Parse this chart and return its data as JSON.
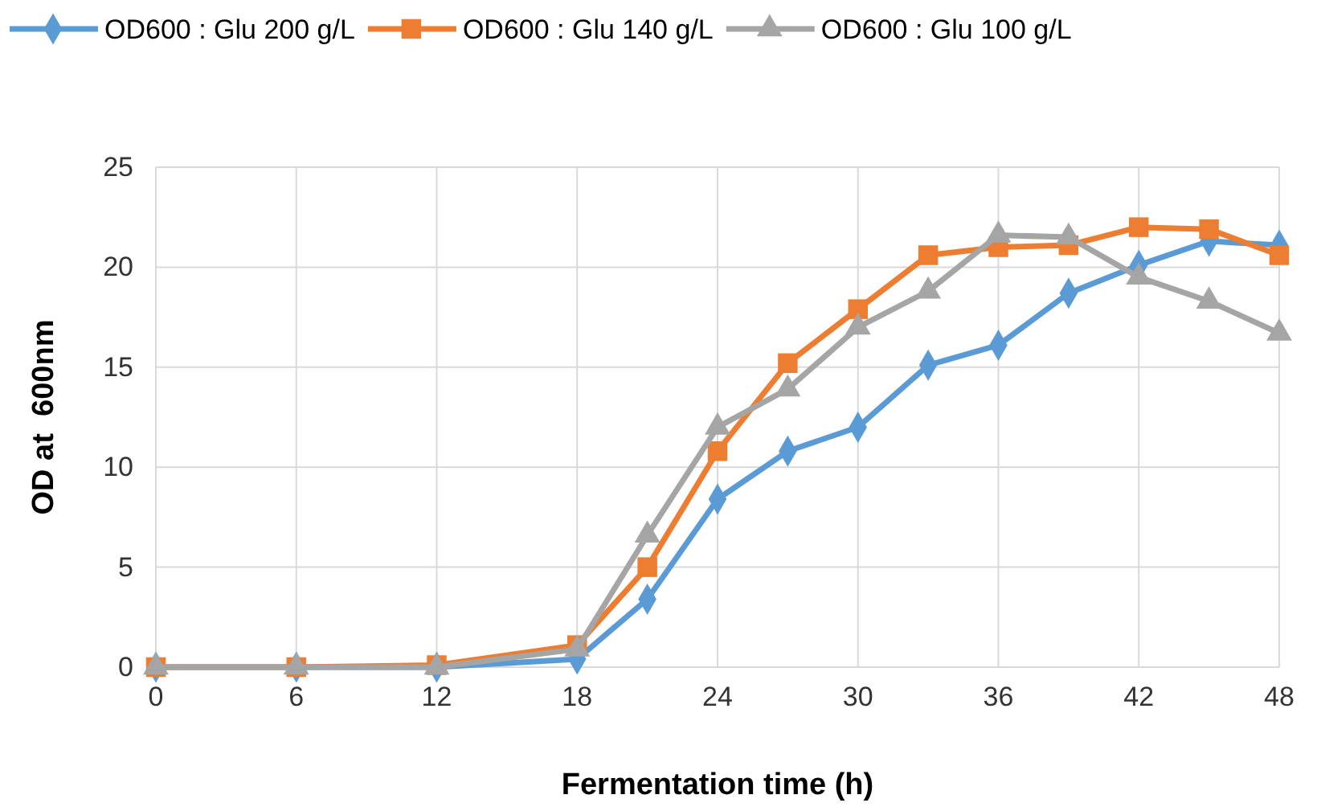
{
  "chart_data": {
    "type": "line",
    "xlabel": "Fermentation time (h)",
    "ylabel": "OD at  600nm",
    "x": [
      0,
      6,
      12,
      18,
      21,
      24,
      27,
      30,
      33,
      36,
      39,
      42,
      45,
      48
    ],
    "xlim": [
      0,
      48
    ],
    "xticks": [
      0,
      6,
      12,
      18,
      24,
      30,
      36,
      42,
      48
    ],
    "ylim": [
      0,
      25
    ],
    "yticks": [
      0,
      5,
      10,
      15,
      20,
      25
    ],
    "grid": true,
    "legend": "top",
    "series": [
      {
        "name": "OD600 : Glu 200 g/L",
        "color": "#5b9bd5",
        "marker": "diamond",
        "values": [
          0,
          0,
          0,
          0.4,
          3.4,
          8.4,
          10.8,
          12,
          15.1,
          16.1,
          18.7,
          20.1,
          21.3,
          21.1
        ]
      },
      {
        "name": "OD600 : Glu 140 g/L",
        "color": "#ed7d31",
        "marker": "square",
        "values": [
          0,
          0,
          0.1,
          1.1,
          5,
          10.8,
          15.2,
          17.9,
          20.6,
          21,
          21.1,
          22,
          21.9,
          20.6
        ]
      },
      {
        "name": "OD600 : Glu 100 g/L",
        "color": "#a5a5a5",
        "marker": "triangle",
        "values": [
          0,
          0,
          0,
          0.9,
          6.6,
          12,
          13.9,
          17,
          18.8,
          21.6,
          21.5,
          19.5,
          18.3,
          16.7
        ]
      }
    ]
  }
}
